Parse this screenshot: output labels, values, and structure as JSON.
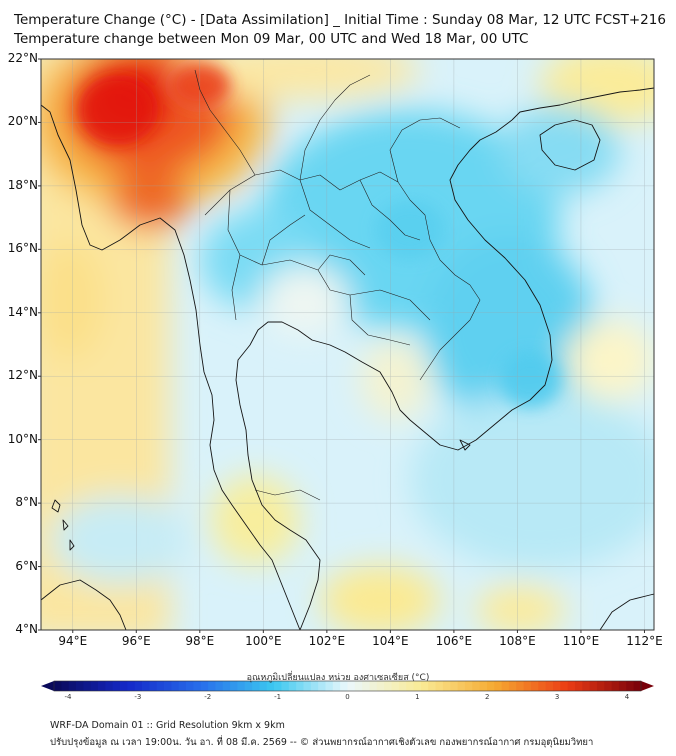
{
  "header": {
    "title_line1": "Temperature Change (°C) - [Data Assimilation] _ Initial Time : Sunday 08 Mar, 12 UTC FCST+216",
    "title_line2": "Temperature change between Mon 09 Mar, 00 UTC and Wed 18 Mar, 00 UTC"
  },
  "map": {
    "lat_labels": [
      "22°N",
      "20°N",
      "18°N",
      "16°N",
      "14°N",
      "12°N",
      "10°N",
      "8°N",
      "6°N",
      "4°N"
    ],
    "lon_labels": [
      "94°E",
      "96°E",
      "98°E",
      "100°E",
      "102°E",
      "104°E",
      "106°E",
      "108°E",
      "110°E",
      "112°E"
    ],
    "lat_range": [
      4,
      22
    ],
    "lon_range": [
      93,
      112.3
    ]
  },
  "colorbar": {
    "title": "อุณหภูมิเปลี่ยนแปลง หน่วย องศาเซลเซียส (°C)",
    "ticks": [
      "-4",
      "-3",
      "-2",
      "-1",
      "0",
      "1",
      "2",
      "3",
      "4"
    ],
    "range": [
      -4,
      4
    ]
  },
  "footer": {
    "line1": "WRF-DA Domain 01 :: Grid Resolution 9km x 9km",
    "line2": "ปรับปรุงข้อมูล ณ เวลา 19:00น. วัน อา. ที่ 08 มี.ค. 2569 -- © ส่วนพยากรณ์อากาศเชิงตัวเลข กองพยากรณ์อากาศ กรมอุตุนิยมวิทยา"
  },
  "colors": {
    "warm_strong": "#e8200e",
    "warm": "#f5a623",
    "warm_light": "#fbe27a",
    "neutral": "#f2f8fb",
    "cool_light": "#bfe9f7",
    "cool": "#5fd3f2",
    "coastline": "#111111"
  }
}
